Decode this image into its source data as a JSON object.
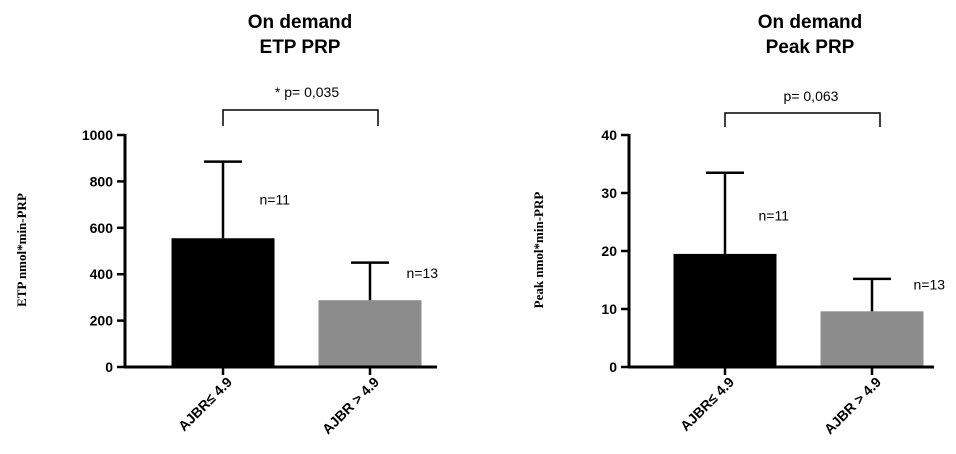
{
  "chart_data": [
    {
      "type": "bar",
      "title": "On demand",
      "subtitle": "ETP PRP",
      "xlabel": "",
      "ylabel": "ETP nmol*min-PRP",
      "ylim": [
        0,
        1000
      ],
      "yticks": [
        0,
        200,
        400,
        600,
        800,
        1000
      ],
      "grid": false,
      "categories": [
        "AJBR≤ 4.9",
        "AJBR > 4.9"
      ],
      "values": [
        555,
        288
      ],
      "error_upper": [
        885,
        450
      ],
      "n_labels": [
        "n=11",
        "n=13"
      ],
      "colors": [
        "#000000",
        "#8c8c8c"
      ],
      "annotation": "* p= 0,035"
    },
    {
      "type": "bar",
      "title": "On demand",
      "subtitle": "Peak PRP",
      "xlabel": "",
      "ylabel": "Peak nmol*min-PRP",
      "ylim": [
        0,
        40
      ],
      "yticks": [
        0,
        10,
        20,
        30,
        40
      ],
      "grid": false,
      "categories": [
        "AJBR≤ 4.9",
        "AJBR > 4.9"
      ],
      "values": [
        19.5,
        9.6
      ],
      "error_upper": [
        33.5,
        15.2
      ],
      "n_labels": [
        "n=11",
        "n=13"
      ],
      "colors": [
        "#000000",
        "#8c8c8c"
      ],
      "annotation": "p= 0,063"
    }
  ]
}
